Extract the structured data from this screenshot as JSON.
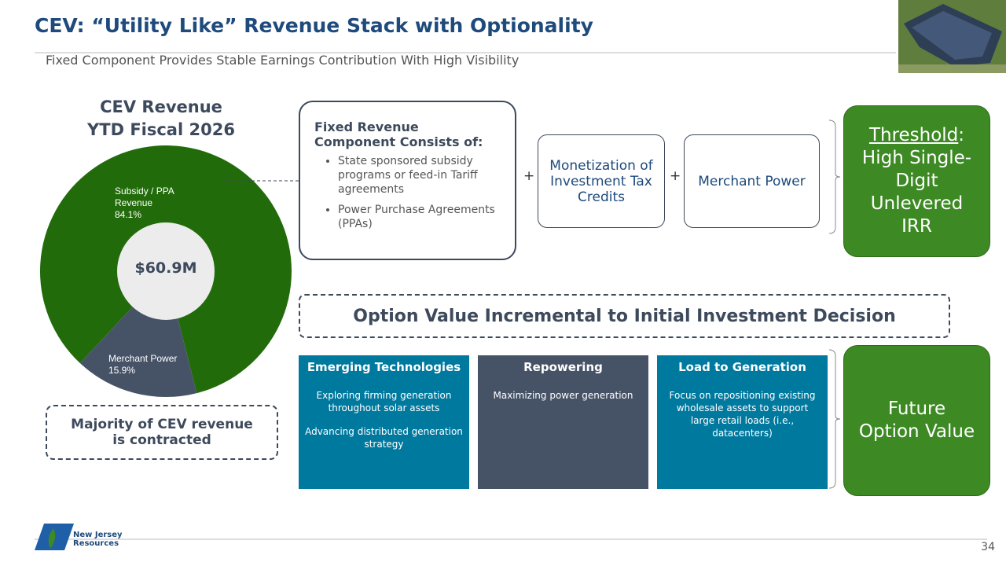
{
  "header": {
    "title": "CEV: “Utility Like” Revenue Stack with Optionality",
    "subtitle": "Fixed Component Provides Stable Earnings Contribution With High Visibility"
  },
  "chart_data": {
    "type": "pie",
    "title": [
      "CEV Revenue",
      "YTD Fiscal 2026"
    ],
    "categories": [
      "Subsidy / PPA Revenue",
      "Merchant Power"
    ],
    "values": [
      84.1,
      15.9
    ],
    "value_labels": [
      "84.1%",
      "15.9%"
    ],
    "colors": [
      "#226b0b",
      "#465367"
    ],
    "center_label": "$60.9M"
  },
  "callout": "Majority of CEV revenue is contracted",
  "fixed_box": {
    "heading": "Fixed Revenue Component Consists of:",
    "bullets": [
      "State sponsored subsidy programs or feed-in Tariff agreements",
      "Power Purchase Agreements (PPAs)"
    ]
  },
  "operator": "+",
  "stack_boxes": [
    "Monetization of Investment Tax Credits",
    "Merchant Power"
  ],
  "threshold": {
    "label": "Threshold",
    "separator": ":",
    "text": "High Single-Digit Unlevered IRR"
  },
  "option_banner": "Option Value Incremental to Initial Investment Decision",
  "options": [
    {
      "heading": "Emerging Technologies",
      "body": [
        "Exploring firming generation throughout solar assets",
        "Advancing distributed generation strategy"
      ]
    },
    {
      "heading": "Repowering",
      "body": [
        "Maximizing power generation"
      ]
    },
    {
      "heading": "Load to Generation",
      "body": [
        "Focus on repositioning existing wholesale assets to support large retail loads (i.e., datacenters)"
      ]
    }
  ],
  "future": "Future Option Value",
  "footer": {
    "company": "New Jersey Resources",
    "page": "34"
  }
}
